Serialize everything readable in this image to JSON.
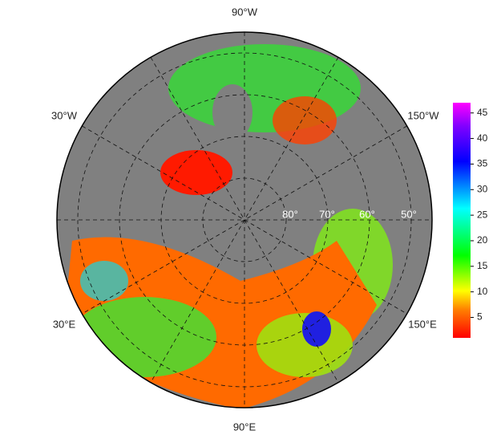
{
  "map": {
    "longitude_labels": [
      "90°W",
      "30°W",
      "150°W",
      "30°E",
      "150°E",
      "90°E"
    ],
    "latitude_labels": [
      "80°",
      "70°",
      "60°",
      "50°"
    ]
  },
  "colorbar": {
    "lim": [
      1,
      47
    ],
    "ticks": [
      5,
      10,
      15,
      20,
      25,
      30,
      35,
      40,
      45
    ]
  }
}
